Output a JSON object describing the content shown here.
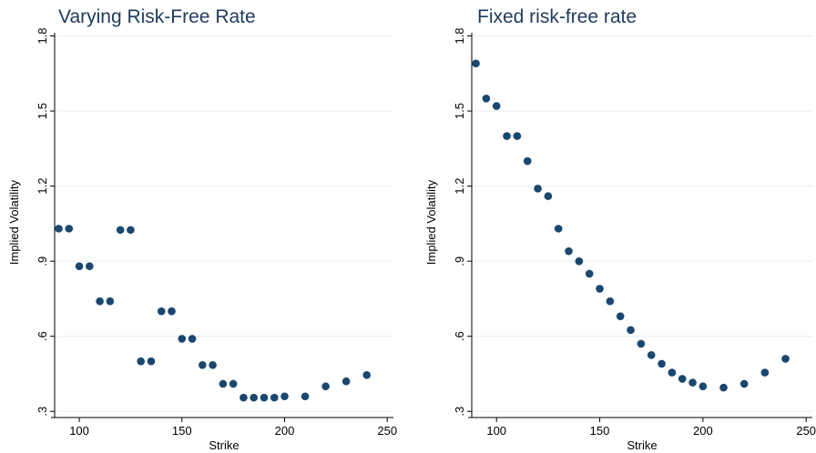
{
  "chart_data": [
    {
      "type": "scatter",
      "title": "Varying Risk-Free Rate",
      "xlabel": "Strike",
      "ylabel": "Implied Volatility",
      "xlim": [
        88,
        253
      ],
      "ylim": [
        0.29,
        1.82
      ],
      "xticks": [
        100,
        150,
        200,
        250
      ],
      "xtick_labels": [
        "100",
        "150",
        "200",
        "250"
      ],
      "yticks": [
        0.3,
        0.6,
        0.9,
        1.2,
        1.5,
        1.8
      ],
      "ytick_labels": [
        ".3",
        ".6",
        ".9",
        "1.2",
        "1.5",
        "1.8"
      ],
      "grid": true,
      "marker_color": "#1a476f",
      "x": [
        90,
        95,
        100,
        105,
        110,
        115,
        120,
        125,
        130,
        135,
        140,
        145,
        150,
        155,
        160,
        165,
        170,
        175,
        180,
        185,
        190,
        195,
        200,
        210,
        220,
        230,
        240
      ],
      "y": [
        1.03,
        1.03,
        0.88,
        0.88,
        0.74,
        0.74,
        1.025,
        1.025,
        0.5,
        0.5,
        0.7,
        0.7,
        0.59,
        0.59,
        0.485,
        0.485,
        0.41,
        0.41,
        0.355,
        0.355,
        0.355,
        0.355,
        0.36,
        0.36,
        0.4,
        0.42,
        0.445
      ]
    },
    {
      "type": "scatter",
      "title": "Fixed risk-free rate",
      "xlabel": "Strike",
      "ylabel": "Implied Volatility",
      "xlim": [
        88,
        253
      ],
      "ylim": [
        0.29,
        1.82
      ],
      "xticks": [
        100,
        150,
        200,
        250
      ],
      "xtick_labels": [
        "100",
        "150",
        "200",
        "250"
      ],
      "yticks": [
        0.3,
        0.6,
        0.9,
        1.2,
        1.5,
        1.8
      ],
      "ytick_labels": [
        ".3",
        ".6",
        ".9",
        "1.2",
        "1.5",
        "1.8"
      ],
      "grid": true,
      "marker_color": "#1a476f",
      "x": [
        90,
        95,
        100,
        105,
        110,
        115,
        120,
        125,
        130,
        135,
        140,
        145,
        150,
        155,
        160,
        165,
        170,
        175,
        180,
        185,
        190,
        195,
        200,
        210,
        220,
        230,
        240
      ],
      "y": [
        1.69,
        1.55,
        1.52,
        1.4,
        1.4,
        1.3,
        1.19,
        1.16,
        1.03,
        0.94,
        0.9,
        0.85,
        0.79,
        0.74,
        0.68,
        0.625,
        0.57,
        0.525,
        0.49,
        0.455,
        0.43,
        0.415,
        0.4,
        0.395,
        0.41,
        0.455,
        0.51
      ]
    }
  ]
}
